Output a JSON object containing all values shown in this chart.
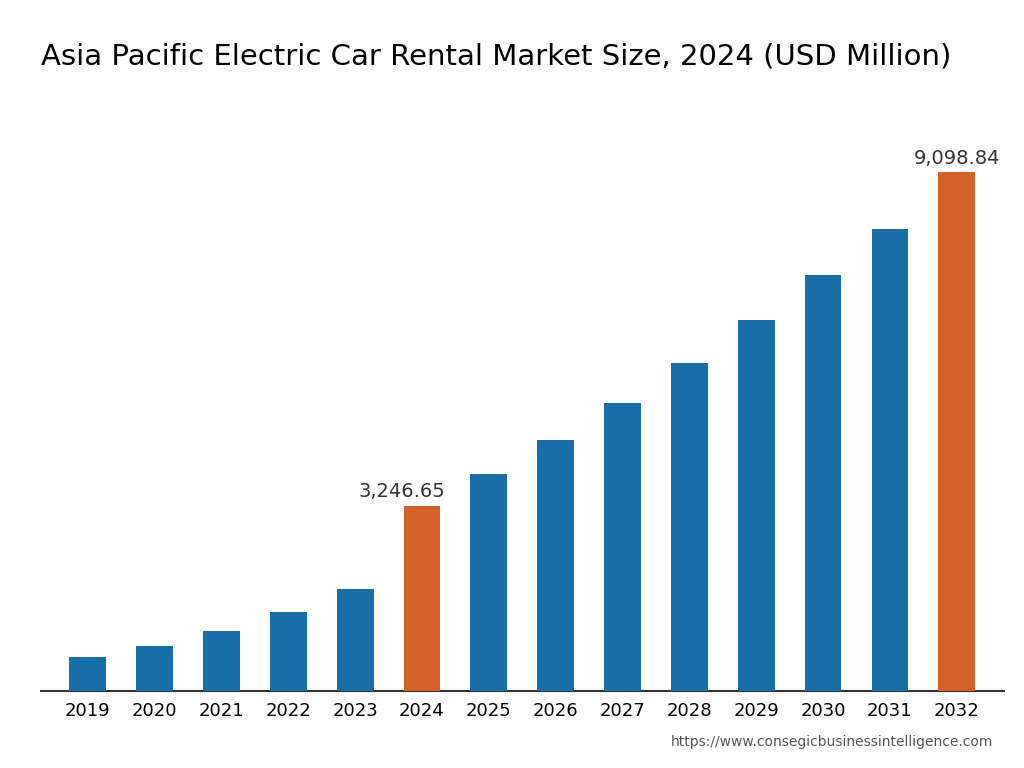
{
  "title": "Asia Pacific Electric Car Rental Market Size, 2024 (USD Million)",
  "years": [
    2019,
    2020,
    2021,
    2022,
    2023,
    2024,
    2025,
    2026,
    2027,
    2028,
    2029,
    2030,
    2031,
    2032
  ],
  "values": [
    600,
    800,
    1050,
    1380,
    1800,
    3246.65,
    3800,
    4400,
    5050,
    5750,
    6500,
    7300,
    8100,
    9098.84
  ],
  "bar_colors": [
    "#1b6fa8",
    "#1b6fa8",
    "#1b6fa8",
    "#1b6fa8",
    "#1b6fa8",
    "#d2622a",
    "#1b6fa8",
    "#1b6fa8",
    "#1b6fa8",
    "#1b6fa8",
    "#1b6fa8",
    "#1b6fa8",
    "#1b6fa8",
    "#d2622a"
  ],
  "highlighted_bars": [
    5,
    13
  ],
  "highlighted_labels": [
    "3,246.65",
    "9,098.84"
  ],
  "background_color": "#ffffff",
  "title_fontsize": 21,
  "tick_fontsize": 13,
  "label_fontsize": 14,
  "url_text": "https://www.consegicbusinessintelligence.com",
  "ylim": [
    0,
    10500
  ],
  "bar_width": 0.55
}
